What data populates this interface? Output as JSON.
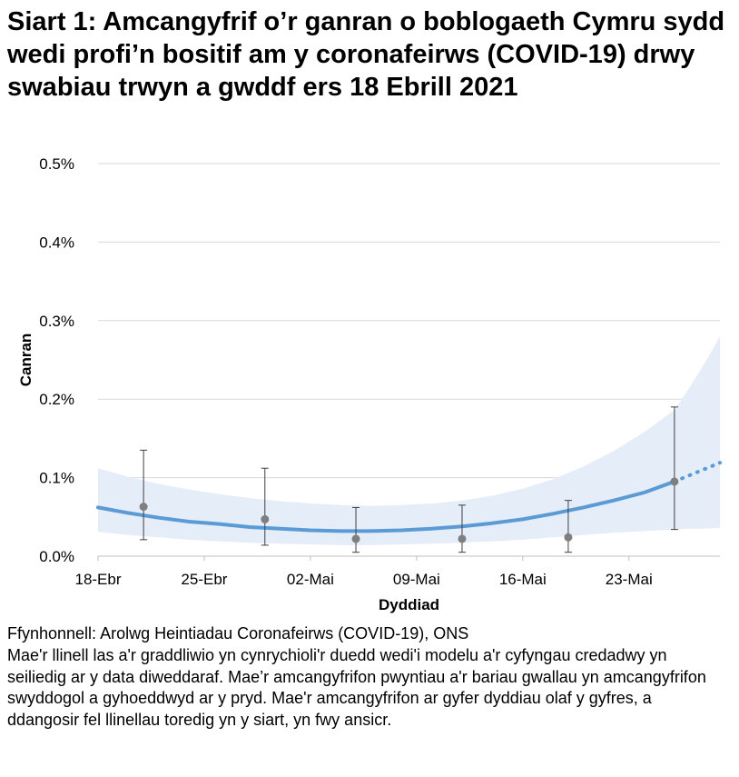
{
  "title": "Siart 1: Amcangyfrif o’r ganran o boblogaeth Cymru sydd wedi profi’n bositif am y coronafeirws (COVID-19) drwy swabiau trwyn a gwddf ers 18 Ebrill 2021",
  "source": "Ffynhonnell: Arolwg Heintiadau Coronafeirws (COVID-19), ONS",
  "note": "Mae'r llinell las a'r graddliwio yn cynrychioli'r duedd wedi'i modelu a'r cyfyngau credadwy yn seiliedig ar y data diweddaraf. Mae’r amcangyfrifon pwyntiau a'r bariau gwallau yn amcangyfrifon swyddogol a gyhoeddwyd ar y pryd. Mae'r amcangyfrifon ar gyfer dyddiau olaf y gyfres, a ddangosir fel llinellau toredig yn y siart, yn fwy ansicr.",
  "colors": {
    "trend": "#5b9bd5",
    "band": "#e5edf8",
    "points": "#7f7f7f",
    "grid": "#d9d9d9"
  },
  "chart_data": {
    "type": "line",
    "xlabel": "Dyddiad",
    "ylabel": "Canran",
    "x_tick_labels": [
      "18-Ebr",
      "25-Ebr",
      "02-Mai",
      "09-Mai",
      "16-Mai",
      "23-Mai"
    ],
    "y_tick_labels": [
      "0.0%",
      "0.1%",
      "0.2%",
      "0.3%",
      "0.4%",
      "0.5%"
    ],
    "ylim": [
      0,
      0.5
    ],
    "y_ticks": [
      0,
      0.1,
      0.2,
      0.3,
      0.4,
      0.5
    ],
    "grid": true,
    "x_range_days": [
      0,
      41
    ],
    "x_tick_days": [
      0,
      7,
      14,
      21,
      28,
      35
    ],
    "modelled_trend": {
      "days": [
        0,
        2,
        4,
        6,
        8,
        10,
        12,
        14,
        16,
        18,
        20,
        22,
        24,
        26,
        28,
        30,
        32,
        34,
        36,
        38
      ],
      "estimate": [
        0.062,
        0.055,
        0.049,
        0.044,
        0.041,
        0.037,
        0.035,
        0.033,
        0.032,
        0.032,
        0.033,
        0.035,
        0.038,
        0.042,
        0.047,
        0.054,
        0.062,
        0.071,
        0.081,
        0.095
      ],
      "lower": [
        0.031,
        0.027,
        0.024,
        0.021,
        0.019,
        0.017,
        0.016,
        0.015,
        0.014,
        0.014,
        0.015,
        0.016,
        0.017,
        0.019,
        0.021,
        0.024,
        0.027,
        0.03,
        0.032,
        0.034
      ],
      "upper": [
        0.112,
        0.101,
        0.092,
        0.085,
        0.079,
        0.074,
        0.07,
        0.067,
        0.065,
        0.064,
        0.065,
        0.067,
        0.071,
        0.077,
        0.086,
        0.098,
        0.114,
        0.134,
        0.158,
        0.186
      ]
    },
    "uncertain_trend": {
      "days": [
        38,
        39,
        40,
        41
      ],
      "estimate": [
        0.095,
        0.103,
        0.111,
        0.119
      ],
      "lower": [
        0.034,
        0.035,
        0.035,
        0.036
      ],
      "upper": [
        0.186,
        0.215,
        0.246,
        0.28
      ]
    },
    "official_estimates": [
      {
        "day": 3,
        "value": 0.063,
        "lower": 0.021,
        "upper": 0.135
      },
      {
        "day": 11,
        "value": 0.047,
        "lower": 0.014,
        "upper": 0.112
      },
      {
        "day": 17,
        "value": 0.022,
        "lower": 0.005,
        "upper": 0.062
      },
      {
        "day": 24,
        "value": 0.022,
        "lower": 0.005,
        "upper": 0.065
      },
      {
        "day": 31,
        "value": 0.024,
        "lower": 0.005,
        "upper": 0.071
      },
      {
        "day": 38,
        "value": 0.095,
        "lower": 0.034,
        "upper": 0.19
      }
    ]
  }
}
